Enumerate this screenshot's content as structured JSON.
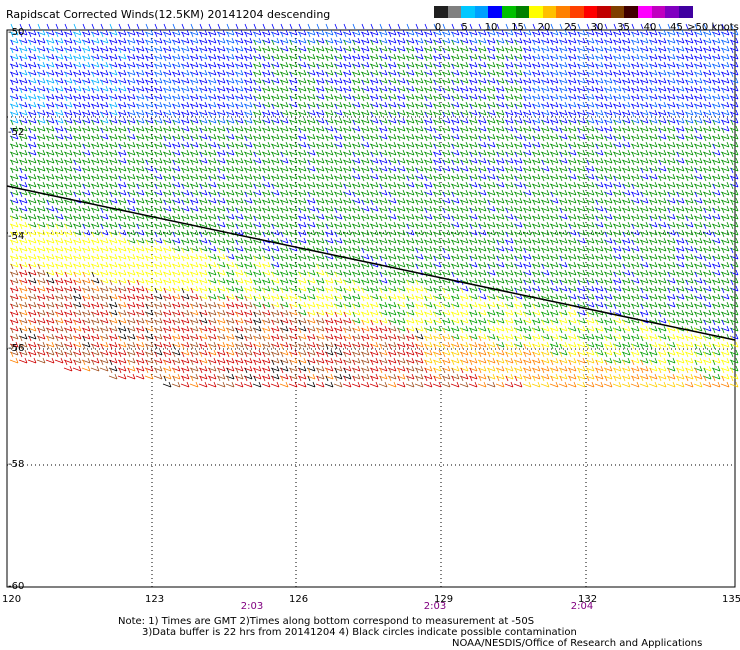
{
  "title": "Rapidscat Corrected Winds(12.5KM) 20141204 descending",
  "legend": {
    "colors": [
      "#202020",
      "#808080",
      "#00c8ff",
      "#00a0ff",
      "#0000ff",
      "#00c000",
      "#008000",
      "#ffff00",
      "#ffc000",
      "#ff8000",
      "#ff4000",
      "#ff0000",
      "#c00000",
      "#804000",
      "#400000",
      "#ff00ff",
      "#c000c0",
      "#8000c0",
      "#4000a0"
    ],
    "labels": [
      "0",
      "5",
      "10",
      "15",
      "20",
      "25",
      "30",
      "35",
      "40",
      "45",
      ">50 knots"
    ]
  },
  "axes": {
    "lat_labels": [
      "-50",
      "-52",
      "-54",
      "-56",
      "-58",
      "-60"
    ],
    "lon_labels": [
      "120",
      "123",
      "126",
      "129",
      "132",
      "135"
    ]
  },
  "times": [
    "2:03",
    "2:03",
    "2:04"
  ],
  "notes": {
    "line1": "Note: 1) Times are GMT 2)Times along bottom correspond to measurement at -50S",
    "line2": "3)Data buffer is 22 hrs from 20141204 4) Black circles indicate possible contamination",
    "credit": "NOAA/NESDIS/Office of Research and Applications"
  }
}
